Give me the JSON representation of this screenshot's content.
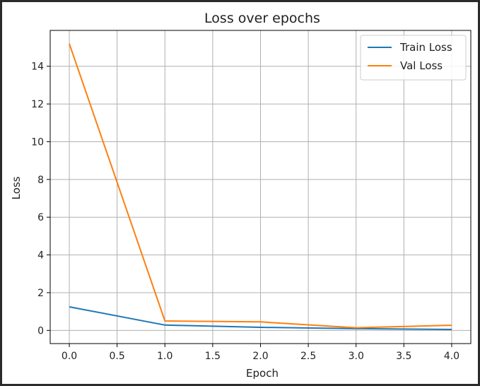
{
  "chart_data": {
    "type": "line",
    "title": "Loss over epochs",
    "xlabel": "Epoch",
    "ylabel": "Loss",
    "x": [
      0,
      1,
      2,
      3,
      4
    ],
    "series": [
      {
        "name": "Train Loss",
        "color": "#1f77b4",
        "values": [
          1.25,
          0.28,
          0.16,
          0.09,
          0.05
        ]
      },
      {
        "name": "Val Loss",
        "color": "#ff7f0e",
        "values": [
          15.2,
          0.5,
          0.45,
          0.14,
          0.27
        ]
      }
    ],
    "xlim": [
      -0.2,
      4.2
    ],
    "ylim": [
      -0.7,
      15.9
    ],
    "xticks": [
      0,
      0.5,
      1,
      1.5,
      2,
      2.5,
      3,
      3.5,
      4
    ],
    "xtick_labels": [
      "0.0",
      "0.5",
      "1.0",
      "1.5",
      "2.0",
      "2.5",
      "3.0",
      "3.5",
      "4.0"
    ],
    "yticks": [
      0,
      2,
      4,
      6,
      8,
      10,
      12,
      14
    ],
    "ytick_labels": [
      "0",
      "2",
      "4",
      "6",
      "8",
      "10",
      "12",
      "14"
    ],
    "grid": true,
    "legend_position": "top-right"
  }
}
